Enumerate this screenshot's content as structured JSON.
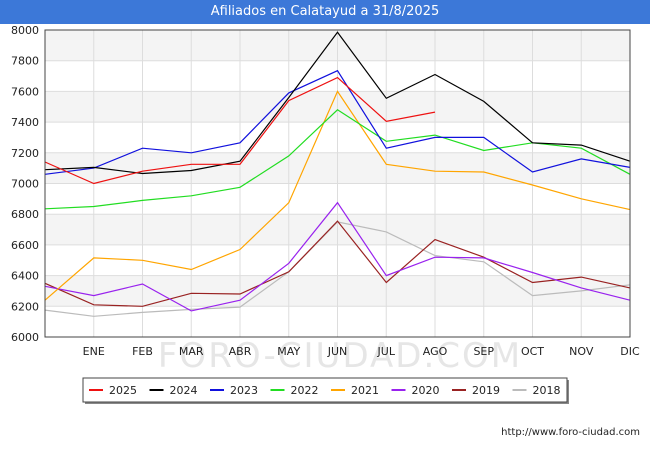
{
  "chart_data": {
    "type": "line",
    "title": "Afiliados en Calatayud a 31/8/2025",
    "categories": [
      "",
      "ENE",
      "FEB",
      "MAR",
      "ABR",
      "MAY",
      "JUN",
      "JUL",
      "AGO",
      "SEP",
      "OCT",
      "NOV",
      "DIC"
    ],
    "ylim": [
      6000,
      8000
    ],
    "yticks": [
      6000,
      6200,
      6400,
      6600,
      6800,
      7000,
      7200,
      7400,
      7600,
      7800,
      8000
    ],
    "grid": true,
    "legend_position": "bottom",
    "watermark": "FORO-CIUDAD.COM",
    "series": [
      {
        "name": "2025",
        "color": "#ee1111",
        "values": [
          7140,
          7000,
          7080,
          7125,
          7125,
          7540,
          7690,
          7405,
          7465,
          null,
          null,
          null,
          null
        ]
      },
      {
        "name": "2024",
        "color": "#000000",
        "values": [
          7090,
          7105,
          7065,
          7085,
          7145,
          7560,
          7985,
          7555,
          7710,
          7535,
          7265,
          7250,
          7145
        ]
      },
      {
        "name": "2023",
        "color": "#1111dd",
        "values": [
          7060,
          7100,
          7230,
          7200,
          7265,
          7590,
          7735,
          7230,
          7300,
          7300,
          7075,
          7160,
          7105
        ]
      },
      {
        "name": "2022",
        "color": "#22dd22",
        "values": [
          6835,
          6850,
          6890,
          6920,
          6975,
          7180,
          7480,
          7275,
          7315,
          7215,
          7265,
          7230,
          7060
        ]
      },
      {
        "name": "2021",
        "color": "#ffa500",
        "values": [
          6240,
          6515,
          6500,
          6440,
          6570,
          6875,
          7600,
          7125,
          7080,
          7075,
          6990,
          6900,
          6830
        ]
      },
      {
        "name": "2020",
        "color": "#9922ee",
        "values": [
          6330,
          6270,
          6345,
          6170,
          6240,
          6480,
          6875,
          6400,
          6520,
          6515,
          6420,
          6320,
          6240
        ]
      },
      {
        "name": "2019",
        "color": "#992222",
        "values": [
          6350,
          6210,
          6200,
          6285,
          6280,
          6425,
          6755,
          6355,
          6635,
          6520,
          6355,
          6390,
          6320
        ]
      },
      {
        "name": "2018",
        "color": "#bbbbbb",
        "values": [
          6175,
          6135,
          6160,
          6180,
          6195,
          6425,
          6750,
          6685,
          6530,
          6490,
          6270,
          6300,
          6340
        ]
      }
    ]
  },
  "footer": {
    "url": "http://www.foro-ciudad.com"
  }
}
